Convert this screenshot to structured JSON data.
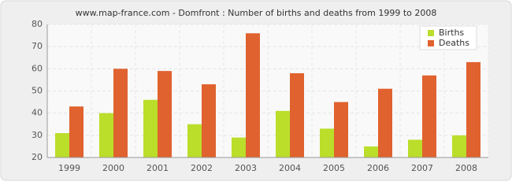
{
  "chart_data": {
    "type": "bar",
    "title": "www.map-france.com - Domfront : Number of births and deaths from 1999 to 2008",
    "categories": [
      "1999",
      "2000",
      "2001",
      "2002",
      "2003",
      "2004",
      "2005",
      "2006",
      "2007",
      "2008"
    ],
    "series": [
      {
        "name": "Births",
        "color": "#bade2a",
        "values": [
          31,
          40,
          46,
          35,
          29,
          41,
          33,
          25,
          28,
          30
        ]
      },
      {
        "name": "Deaths",
        "color": "#e0622f",
        "values": [
          43,
          60,
          59,
          53,
          76,
          58,
          45,
          51,
          57,
          63
        ]
      }
    ],
    "ylim": [
      20,
      80
    ],
    "yticks": [
      20,
      30,
      40,
      50,
      60,
      70,
      80
    ],
    "grid": true,
    "legend": "top-right"
  }
}
